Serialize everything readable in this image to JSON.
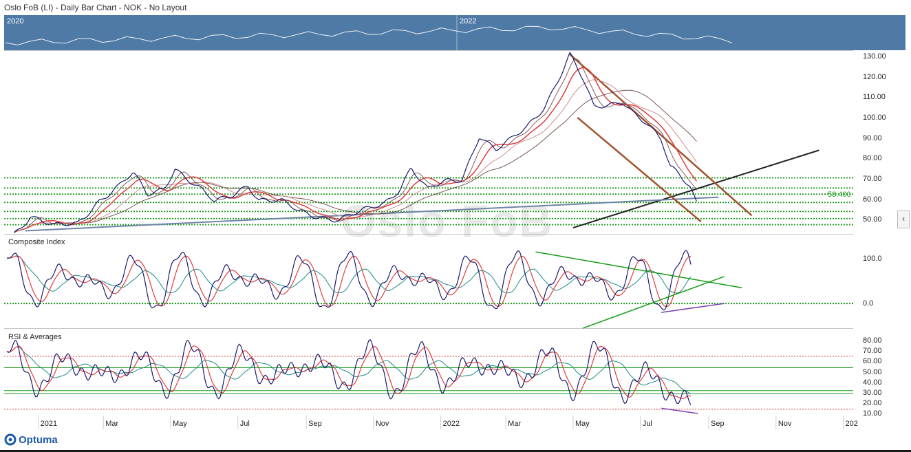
{
  "header": {
    "title": "Oslo FoB (LI) - Daily Bar Chart - NOK - No Layout"
  },
  "navigator": {
    "years": [
      "2020",
      "2022"
    ]
  },
  "watermark": "Oslo FoB",
  "logo": {
    "text": "Optuma"
  },
  "collapse_button": {
    "label": "‹"
  },
  "colors": {
    "price_line": "#1a1a6e",
    "ma_red": "#e03c3c",
    "ma_dark": "#5a2a2a",
    "channel": "#a0522d",
    "trend_black": "#222222",
    "trend_blue": "#6f84a6",
    "support_green": "#159c15",
    "osc_teal": "#1a8a8a",
    "divergence_purple": "#7a3fb0",
    "rsi_ref_red": "#d33",
    "navigator_bg": "#4f7aa6"
  },
  "chart_data": [
    {
      "type": "line",
      "name": "price",
      "label": "",
      "y_axis": {
        "ticks": [
          "130.00",
          "120.00",
          "110.00",
          "100.00",
          "90.00",
          "80.00",
          "70.00",
          "60.00",
          "50.00"
        ],
        "range": [
          43,
          133
        ]
      },
      "support_levels": [
        70.5,
        65.5,
        62.5,
        58.4,
        54,
        50.5,
        47.5
      ],
      "highlight_level": {
        "value": 58.4,
        "label": "58.400"
      },
      "trendlines": [
        {
          "name": "black-trend",
          "from": [
            "2022-05-01",
            46
          ],
          "to": [
            "2022-12-10",
            84
          ]
        },
        {
          "name": "blue-trend",
          "from": [
            "2020-12-20",
            44.5
          ],
          "to": [
            "2022-09-10",
            61
          ]
        }
      ],
      "channel": [
        {
          "name": "channel-upper",
          "from": [
            "2022-04-28",
            131
          ],
          "to": [
            "2022-10-10",
            52
          ]
        },
        {
          "name": "channel-lower",
          "from": [
            "2022-05-05",
            100
          ],
          "to": [
            "2022-08-25",
            49
          ]
        }
      ],
      "series_points": [
        [
          "2020-12-10",
          44
        ],
        [
          "2020-12-25",
          52
        ],
        [
          "2021-01-15",
          46
        ],
        [
          "2021-02-05",
          48
        ],
        [
          "2021-02-25",
          60
        ],
        [
          "2021-03-15",
          66
        ],
        [
          "2021-03-28",
          72
        ],
        [
          "2021-04-10",
          62
        ],
        [
          "2021-04-25",
          66
        ],
        [
          "2021-05-05",
          76
        ],
        [
          "2021-05-20",
          68
        ],
        [
          "2021-06-10",
          58
        ],
        [
          "2021-06-25",
          62
        ],
        [
          "2021-07-10",
          68
        ],
        [
          "2021-07-20",
          60
        ],
        [
          "2021-08-10",
          58
        ],
        [
          "2021-08-25",
          54
        ],
        [
          "2021-09-15",
          52
        ],
        [
          "2021-10-01",
          50
        ],
        [
          "2021-10-20",
          53
        ],
        [
          "2021-11-10",
          58
        ],
        [
          "2021-11-25",
          66
        ],
        [
          "2021-12-05",
          76
        ],
        [
          "2021-12-20",
          64
        ],
        [
          "2022-01-05",
          68
        ],
        [
          "2022-01-20",
          70
        ],
        [
          "2022-02-05",
          92
        ],
        [
          "2022-02-20",
          84
        ],
        [
          "2022-03-05",
          88
        ],
        [
          "2022-03-20",
          95
        ],
        [
          "2022-04-05",
          106
        ],
        [
          "2022-04-20",
          122
        ],
        [
          "2022-04-28",
          131
        ],
        [
          "2022-05-10",
          118
        ],
        [
          "2022-05-20",
          104
        ],
        [
          "2022-06-01",
          106
        ],
        [
          "2022-06-15",
          109
        ],
        [
          "2022-06-25",
          103
        ],
        [
          "2022-07-05",
          98
        ],
        [
          "2022-07-20",
          88
        ],
        [
          "2022-07-28",
          75
        ],
        [
          "2022-08-05",
          72
        ],
        [
          "2022-08-15",
          67
        ],
        [
          "2022-08-22",
          58
        ]
      ]
    },
    {
      "type": "line",
      "name": "composite",
      "label": "Composite Index",
      "y_axis": {
        "ticks": [
          "100.0",
          "0.0"
        ],
        "range": [
          -55,
          155
        ]
      },
      "zero_line": 0,
      "trendlines": [
        {
          "name": "upper-wedge",
          "from": [
            "2022-03-28",
            115
          ],
          "to": [
            "2022-10-01",
            35
          ]
        },
        {
          "name": "lower-wedge",
          "from": [
            "2022-05-10",
            -55
          ],
          "to": [
            "2022-09-15",
            60
          ]
        },
        {
          "name": "divergence",
          "from": [
            "2022-07-20",
            -20
          ],
          "to": [
            "2022-09-15",
            0
          ]
        }
      ]
    },
    {
      "type": "line",
      "name": "rsi",
      "label": "RSI & Averages",
      "y_axis": {
        "ticks": [
          "80.00",
          "70.00",
          "60.00",
          "50.00",
          "40.00",
          "30.00",
          "20.00",
          "10.00"
        ],
        "range": [
          8,
          92
        ]
      },
      "ref_lines_red": [
        65,
        14
      ],
      "ref_lines_green": [
        54,
        32,
        29
      ],
      "divergence": {
        "from": [
          "2022-07-20",
          15
        ],
        "to": [
          "2022-08-22",
          10
        ]
      }
    }
  ],
  "x_axis": {
    "labels": [
      {
        "label": "2021",
        "date": "2021-01-01"
      },
      {
        "label": "Mar",
        "date": "2021-03-01"
      },
      {
        "label": "May",
        "date": "2021-05-01"
      },
      {
        "label": "Jul",
        "date": "2021-07-01"
      },
      {
        "label": "Sep",
        "date": "2021-09-01"
      },
      {
        "label": "Nov",
        "date": "2021-11-01"
      },
      {
        "label": "2022",
        "date": "2022-01-01"
      },
      {
        "label": "Mar",
        "date": "2022-03-01"
      },
      {
        "label": "May",
        "date": "2022-05-01"
      },
      {
        "label": "Jul",
        "date": "2022-07-01"
      },
      {
        "label": "Sep",
        "date": "2022-09-01"
      },
      {
        "label": "Nov",
        "date": "2022-11-01"
      },
      {
        "label": "202",
        "date": "2023-01-01"
      }
    ]
  }
}
